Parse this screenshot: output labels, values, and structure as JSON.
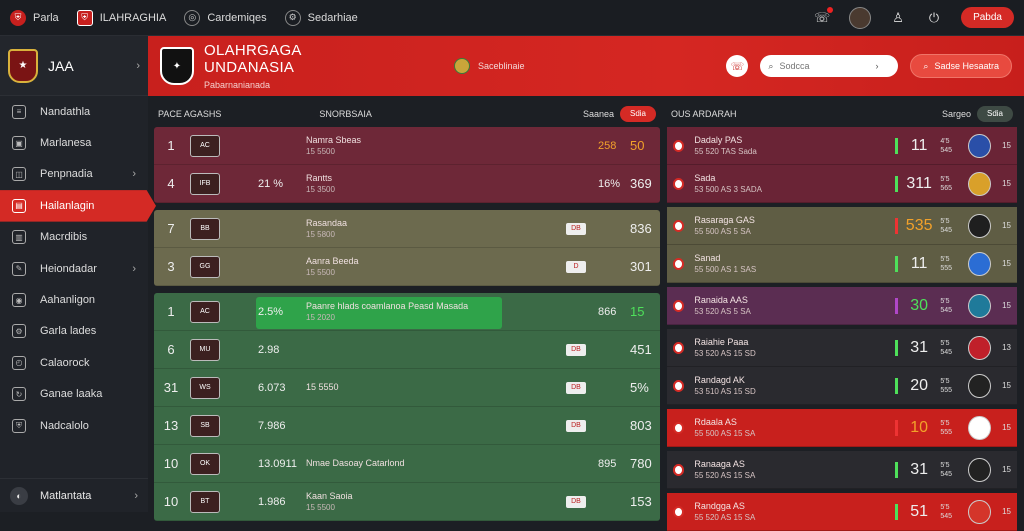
{
  "topnav": {
    "items": [
      {
        "label": "Parla",
        "icon": "club-logo-icon"
      },
      {
        "label": "ILAHRAGHIA",
        "icon": "shield-icon"
      },
      {
        "label": "Cardemiqes",
        "icon": "compass-icon"
      },
      {
        "label": "Sedarhiae",
        "icon": "settings-icon"
      }
    ],
    "cta": "Pabda"
  },
  "sidebar": {
    "title": "JAA",
    "items": [
      {
        "label": "Nandathla",
        "chevron": false
      },
      {
        "label": "Marlanesa",
        "chevron": false
      },
      {
        "label": "Penpnadia",
        "chevron": true
      },
      {
        "label": "Hailanlagin",
        "chevron": false,
        "active": true
      },
      {
        "label": "Macrdibis",
        "chevron": false
      },
      {
        "label": "Heiondadar",
        "chevron": true
      },
      {
        "label": "Aahanligon",
        "chevron": false
      },
      {
        "label": "Garla lades",
        "chevron": false
      },
      {
        "label": "Calaorock",
        "chevron": false
      },
      {
        "label": "Ganae laaka",
        "chevron": false
      },
      {
        "label": "Nadcalolo",
        "chevron": false
      }
    ],
    "footer": "Matlantata"
  },
  "banner": {
    "title": "OLAHRGAGA UNDANASIA",
    "subtitle": "Pabarnanianada",
    "meta": "Saceblinaie",
    "search_placeholder": "Sodcca",
    "button": "Sadse Hesaatra"
  },
  "left_panel": {
    "col1": "PACE AGASHS",
    "col2": "SNORBSAIA",
    "sort_label": "Saanea",
    "sort_value": "Sdia",
    "groups": [
      {
        "color": "maroon",
        "rows": [
          {
            "rank": "1",
            "crest": "AC",
            "pct": "",
            "name": "Namra Sbeas",
            "sub": "15 5500",
            "tag": "",
            "v1": "258",
            "v2": "50",
            "orange": true
          },
          {
            "rank": "4",
            "crest": "IFB",
            "pct": "21 %",
            "name": "Rantts",
            "sub": "15 3500",
            "tag": "",
            "v1": "16%",
            "v2": "369"
          }
        ]
      },
      {
        "color": "olive",
        "rows": [
          {
            "rank": "7",
            "crest": "BB",
            "pct": "",
            "name": "Rasandaa",
            "sub": "15 5800",
            "tag": "DB",
            "v1": "",
            "v2": "836"
          },
          {
            "rank": "3",
            "crest": "GG",
            "pct": "",
            "name": "Aanra Beeda",
            "sub": "15 5500",
            "tag": "D",
            "v1": "",
            "v2": "301"
          }
        ]
      },
      {
        "color": "green",
        "rows": [
          {
            "rank": "1",
            "crest": "AC",
            "pct": "2.5%",
            "name": "Paanre hlads coamlanoa Peasd Masada",
            "sub": "15 2020",
            "tag": "",
            "v1": "866",
            "v2": "15",
            "green": true,
            "highlight": true
          },
          {
            "rank": "6",
            "crest": "MU",
            "pct": "2.98",
            "name": "",
            "sub": "",
            "tag": "DB",
            "v1": "",
            "v2": "451"
          },
          {
            "rank": "31",
            "crest": "WS",
            "pct": "6.073",
            "name": "15 5550",
            "sub": "",
            "tag": "DB",
            "v1": "",
            "v2": "5%"
          },
          {
            "rank": "13",
            "crest": "SB",
            "pct": "7.986",
            "name": "",
            "sub": "",
            "tag": "DB",
            "v1": "",
            "v2": "803"
          },
          {
            "rank": "10",
            "crest": "OK",
            "pct": "13.0911",
            "name": "Nmae Dasoay Catarlond",
            "sub": "",
            "tag": "",
            "v1": "895",
            "v2": "780"
          },
          {
            "rank": "10",
            "crest": "BT",
            "pct": "1.986",
            "name": "Kaan Saoia",
            "sub": "15 5500",
            "tag": "DB",
            "v1": "",
            "v2": "153"
          }
        ]
      }
    ]
  },
  "right_panel": {
    "title": "OUS ARDARAH",
    "sort_label": "Sargeo",
    "sort_value": "Sdia",
    "rows": [
      {
        "color": "maroon",
        "name": "Dadaly PAS",
        "sub": "55 520 TAS Sada",
        "score": "11",
        "p1": "4'5",
        "p2": "545",
        "x": "15",
        "orange": false
      },
      {
        "color": "maroon",
        "name": "Sada",
        "sub": "53 500 AS 3 SADA",
        "score": "311",
        "p1": "5'5",
        "p2": "565",
        "x": "15"
      },
      {
        "color": "olive",
        "name": "Rasaraga GAS",
        "sub": "55 500 AS 5 SA",
        "score": "535",
        "p1": "5'5",
        "p2": "545",
        "x": "15",
        "orange": true
      },
      {
        "color": "olive",
        "name": "Sanad",
        "sub": "55 500 AS 1 SAS",
        "score": "11",
        "p1": "5'5",
        "p2": "555",
        "x": "15"
      },
      {
        "color": "purple",
        "name": "Ranaida AAS",
        "sub": "53 520 AS 5 SA",
        "score": "30",
        "p1": "5'5",
        "p2": "545",
        "x": "15",
        "green": true
      },
      {
        "color": "dark",
        "name": "Raiahie Paaa",
        "sub": "53 520 AS 15 SD",
        "score": "31",
        "p1": "5'5",
        "p2": "545",
        "x": "13"
      },
      {
        "color": "dark",
        "name": "Randagd AK",
        "sub": "53 510 AS 15 SD",
        "score": "20",
        "p1": "5'5",
        "p2": "555",
        "x": "15"
      },
      {
        "color": "red",
        "name": "Rdaala AS",
        "sub": "55 500 AS 15 SA",
        "score": "10",
        "p1": "5'5",
        "p2": "555",
        "x": "15",
        "orange": true
      },
      {
        "color": "dark",
        "name": "Ranaaga AS",
        "sub": "55 520 AS 15 SA",
        "score": "31",
        "p1": "5'5",
        "p2": "545",
        "x": "15"
      },
      {
        "color": "red",
        "name": "Randgga AS",
        "sub": "55 520 AS 15 SA",
        "score": "51",
        "p1": "5'5",
        "p2": "545",
        "x": "15"
      }
    ]
  }
}
